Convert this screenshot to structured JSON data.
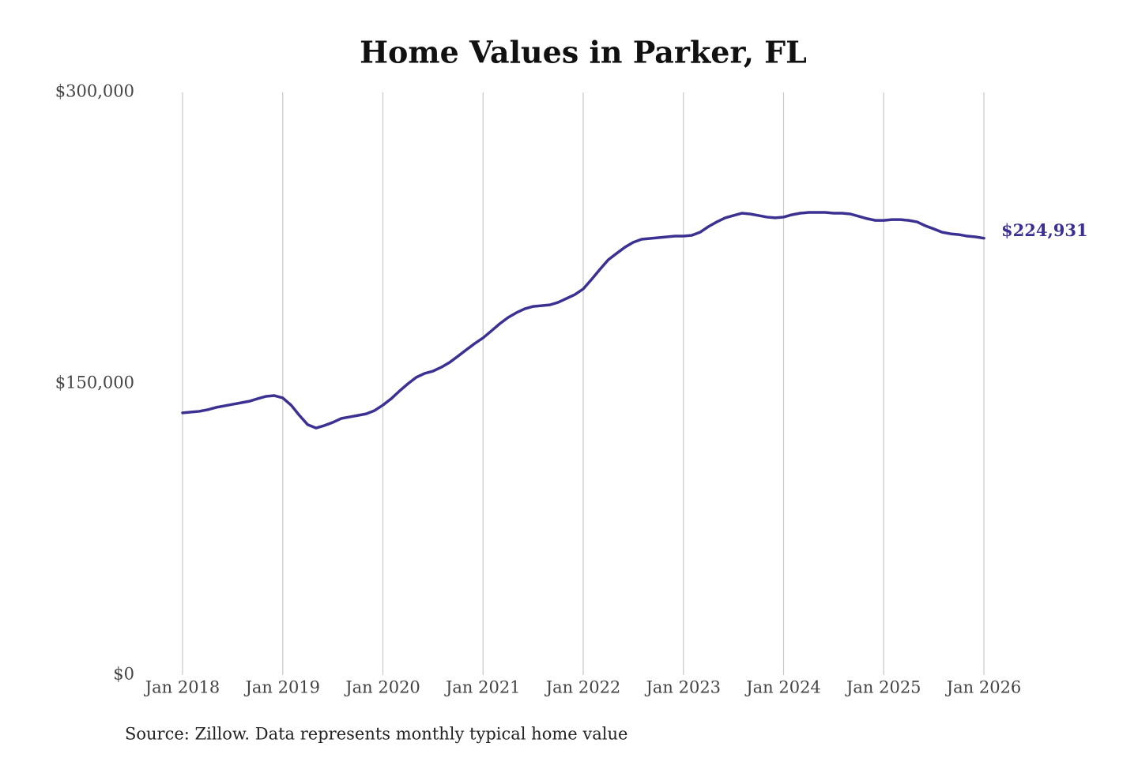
{
  "chart_data": {
    "type": "line",
    "title": "Home Values in Parker, FL",
    "source": "Source: Zillow. Data represents monthly typical home value",
    "x": [
      "2018-01",
      "2018-02",
      "2018-03",
      "2018-04",
      "2018-05",
      "2018-06",
      "2018-07",
      "2018-08",
      "2018-09",
      "2018-10",
      "2018-11",
      "2018-12",
      "2019-01",
      "2019-02",
      "2019-03",
      "2019-04",
      "2019-05",
      "2019-06",
      "2019-07",
      "2019-08",
      "2019-09",
      "2019-10",
      "2019-11",
      "2019-12",
      "2020-01",
      "2020-02",
      "2020-03",
      "2020-04",
      "2020-05",
      "2020-06",
      "2020-07",
      "2020-08",
      "2020-09",
      "2020-10",
      "2020-11",
      "2020-12",
      "2021-01",
      "2021-02",
      "2021-03",
      "2021-04",
      "2021-05",
      "2021-06",
      "2021-07",
      "2021-08",
      "2021-09",
      "2021-10",
      "2021-11",
      "2021-12",
      "2022-01",
      "2022-02",
      "2022-03",
      "2022-04",
      "2022-05",
      "2022-06",
      "2022-07",
      "2022-08",
      "2022-09",
      "2022-10",
      "2022-11",
      "2022-12",
      "2023-01",
      "2023-02",
      "2023-03",
      "2023-04",
      "2023-05",
      "2023-06",
      "2023-07",
      "2023-08",
      "2023-09",
      "2023-10",
      "2023-11",
      "2023-12",
      "2024-01",
      "2024-02",
      "2024-03",
      "2024-04",
      "2024-05",
      "2024-06",
      "2024-07",
      "2024-08",
      "2024-09",
      "2024-10",
      "2024-11",
      "2024-12",
      "2025-01",
      "2025-02",
      "2025-03",
      "2025-04",
      "2025-05",
      "2025-06",
      "2025-07",
      "2025-08",
      "2025-09",
      "2025-10",
      "2025-11",
      "2025-12",
      "2026-01"
    ],
    "series": [
      {
        "color": "#3a3192",
        "values": [
          135000,
          135400,
          135800,
          136600,
          137800,
          138600,
          139400,
          140200,
          141000,
          142300,
          143500,
          143900,
          142700,
          139000,
          133700,
          128900,
          127200,
          128500,
          130100,
          132100,
          132900,
          133700,
          134500,
          136200,
          139000,
          142300,
          146300,
          150000,
          153300,
          155300,
          156500,
          158500,
          161000,
          164200,
          167500,
          170700,
          173600,
          177200,
          180900,
          184100,
          186600,
          188600,
          189800,
          190200,
          190600,
          191900,
          193900,
          195900,
          198800,
          203700,
          208900,
          213800,
          217100,
          220300,
          222800,
          224400,
          224800,
          225200,
          225600,
          226000,
          226000,
          226400,
          228000,
          230900,
          233300,
          235400,
          236600,
          237800,
          237400,
          236600,
          235800,
          235400,
          235800,
          237000,
          237800,
          238200,
          238200,
          238200,
          237800,
          237800,
          237400,
          236200,
          235000,
          234100,
          234100,
          234500,
          234500,
          234100,
          233300,
          231300,
          229700,
          228000,
          227200,
          226800,
          226000,
          225600,
          224931
        ],
        "value_labels": [
          null,
          null,
          null,
          null,
          null,
          null,
          null,
          null,
          null,
          null,
          null,
          null,
          null,
          null,
          null,
          null,
          null,
          null,
          null,
          null,
          null,
          null,
          null,
          null,
          null,
          null,
          null,
          null,
          null,
          null,
          null,
          null,
          null,
          null,
          null,
          null,
          null,
          null,
          null,
          null,
          null,
          null,
          null,
          null,
          null,
          null,
          null,
          null,
          null,
          null,
          null,
          null,
          null,
          null,
          null,
          null,
          null,
          null,
          null,
          null,
          null,
          null,
          null,
          null,
          null,
          null,
          null,
          null,
          null,
          null,
          null,
          null,
          null,
          null,
          null,
          null,
          null,
          null,
          null,
          null,
          null,
          null,
          null,
          null,
          null,
          null,
          null,
          null,
          null,
          null,
          null,
          null,
          null,
          null,
          null,
          null,
          "$224,931"
        ]
      }
    ],
    "xticks": [
      {
        "value": "2018-01",
        "label": "Jan 2018"
      },
      {
        "value": "2019-01",
        "label": "Jan 2019"
      },
      {
        "value": "2020-01",
        "label": "Jan 2020"
      },
      {
        "value": "2021-01",
        "label": "Jan 2021"
      },
      {
        "value": "2022-01",
        "label": "Jan 2022"
      },
      {
        "value": "2023-01",
        "label": "Jan 2023"
      },
      {
        "value": "2024-01",
        "label": "Jan 2024"
      },
      {
        "value": "2025-01",
        "label": "Jan 2025"
      },
      {
        "value": "2026-01",
        "label": "Jan 2026"
      }
    ],
    "xlim": [
      "2018-01",
      "2026-01"
    ],
    "ylim": [
      0,
      300000
    ],
    "yticks": [
      {
        "value": 0,
        "label": "$0"
      },
      {
        "value": 150000,
        "label": "$150,000"
      },
      {
        "value": 300000,
        "label": "$300,000"
      }
    ],
    "grid": "x"
  }
}
